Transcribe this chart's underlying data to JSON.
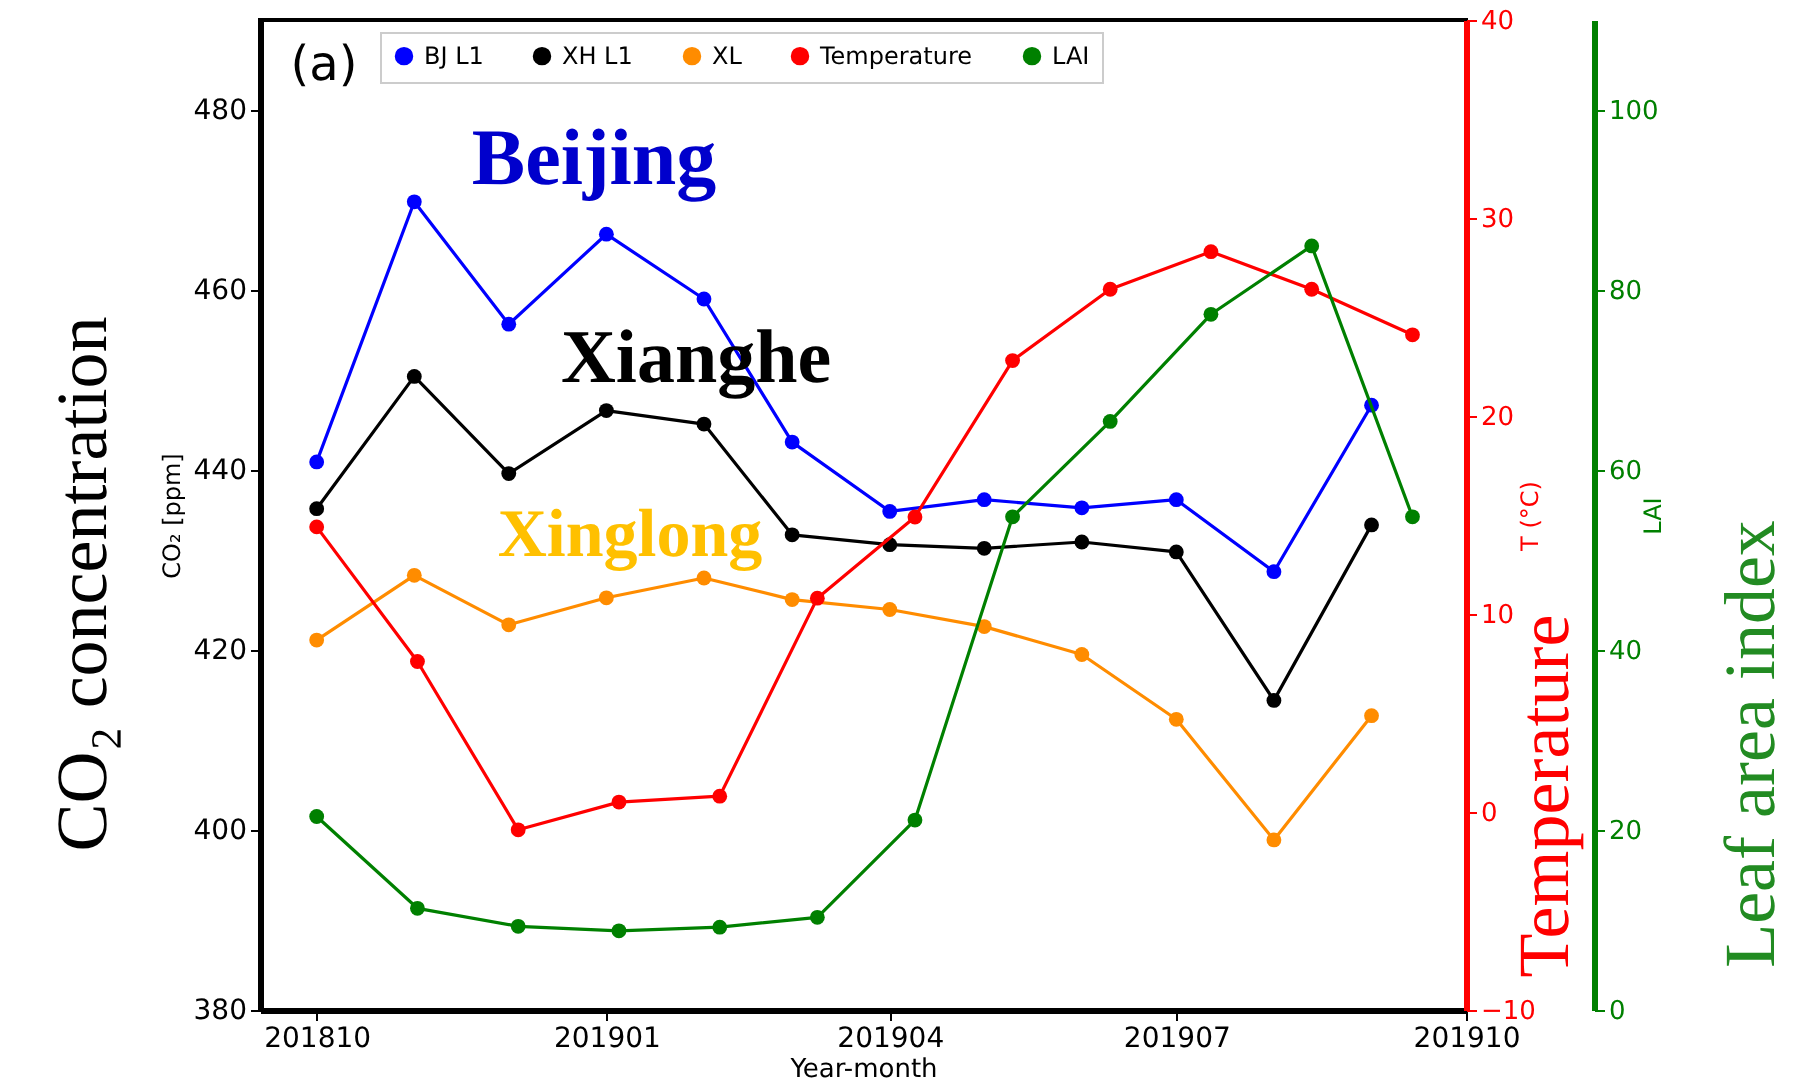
{
  "chart_data": {
    "type": "line",
    "xlabel": "Year-month",
    "ylabel": "CO₂ [ppm]",
    "y2label": "T (°C)",
    "y3label": "LAI",
    "xlim": [
      "2018-09-13",
      "2019-10-01"
    ],
    "xticks": [
      {
        "value": "2018-10",
        "label": "201810"
      },
      {
        "value": "2019-01",
        "label": "201901"
      },
      {
        "value": "2019-04",
        "label": "201904"
      },
      {
        "value": "2019-07",
        "label": "201907"
      },
      {
        "value": "2019-10",
        "label": "201910"
      }
    ],
    "ylim": [
      380,
      490
    ],
    "yticks": [
      380,
      400,
      420,
      440,
      460,
      480
    ],
    "y2lim": [
      -10,
      40
    ],
    "y2ticks": [
      -10,
      0,
      10,
      20,
      30,
      40
    ],
    "y3lim": [
      0,
      110
    ],
    "y3ticks": [
      0,
      20,
      40,
      60,
      80,
      100
    ],
    "legend": "top",
    "marker": "circle",
    "line_style": "solid",
    "series": [
      {
        "name": "BJ L1",
        "color": "#0000ff",
        "axis": "y",
        "x": [
          "2018-10",
          "2018-11",
          "2018-12",
          "2019-01",
          "2019-02",
          "2019-03",
          "2019-04",
          "2019-05",
          "2019-06",
          "2019-07",
          "2019-08",
          "2019-09"
        ],
        "values": [
          440.9,
          469.8,
          456.2,
          466.2,
          459.0,
          443.1,
          435.4,
          436.7,
          435.8,
          436.7,
          428.7,
          447.2
        ]
      },
      {
        "name": "XH L1",
        "color": "#000000",
        "axis": "y",
        "x": [
          "2018-10",
          "2018-11",
          "2018-12",
          "2019-01",
          "2019-02",
          "2019-03",
          "2019-04",
          "2019-05",
          "2019-06",
          "2019-07",
          "2019-08",
          "2019-09"
        ],
        "values": [
          435.7,
          450.4,
          439.6,
          446.6,
          445.1,
          432.8,
          431.7,
          431.3,
          432.0,
          430.9,
          414.4,
          433.9
        ]
      },
      {
        "name": "XL",
        "color": "#ff8c00",
        "axis": "y",
        "x": [
          "2018-10",
          "2018-11",
          "2018-12",
          "2019-01",
          "2019-02",
          "2019-03",
          "2019-04",
          "2019-05",
          "2019-06",
          "2019-07",
          "2019-08",
          "2019-09"
        ],
        "values": [
          421.1,
          428.3,
          422.8,
          425.8,
          428.0,
          425.6,
          424.5,
          422.6,
          419.5,
          412.3,
          398.9,
          412.7
        ]
      },
      {
        "name": "Temperature",
        "color": "#ff0000",
        "axis": "y2",
        "x": [
          "2018-10-01",
          "2018-11-02",
          "2018-12-04",
          "2019-01-05",
          "2019-02-06",
          "2019-03-09",
          "2019-04-09",
          "2019-05-10",
          "2019-06-10",
          "2019-07-12",
          "2019-08-13",
          "2019-09-14"
        ],
        "values": [
          14.4,
          7.6,
          -0.9,
          0.5,
          0.8,
          10.8,
          14.9,
          22.8,
          26.4,
          28.3,
          26.4,
          24.1
        ]
      },
      {
        "name": "LAI",
        "color": "#008000",
        "axis": "y3",
        "x": [
          "2018-10-01",
          "2018-11-02",
          "2018-12-04",
          "2019-01-05",
          "2019-02-06",
          "2019-03-09",
          "2019-04-09",
          "2019-05-10",
          "2019-06-10",
          "2019-07-12",
          "2019-08-13",
          "2019-09-14"
        ],
        "values": [
          21.5,
          11.3,
          9.3,
          8.8,
          9.2,
          10.3,
          21.1,
          54.8,
          65.4,
          77.3,
          84.9,
          54.8
        ]
      }
    ],
    "annotations": [
      "(a)",
      "Beijing",
      "Xianghe",
      "Xinglong",
      "CO₂ concentration",
      "Temperature",
      "Leaf area index"
    ]
  }
}
